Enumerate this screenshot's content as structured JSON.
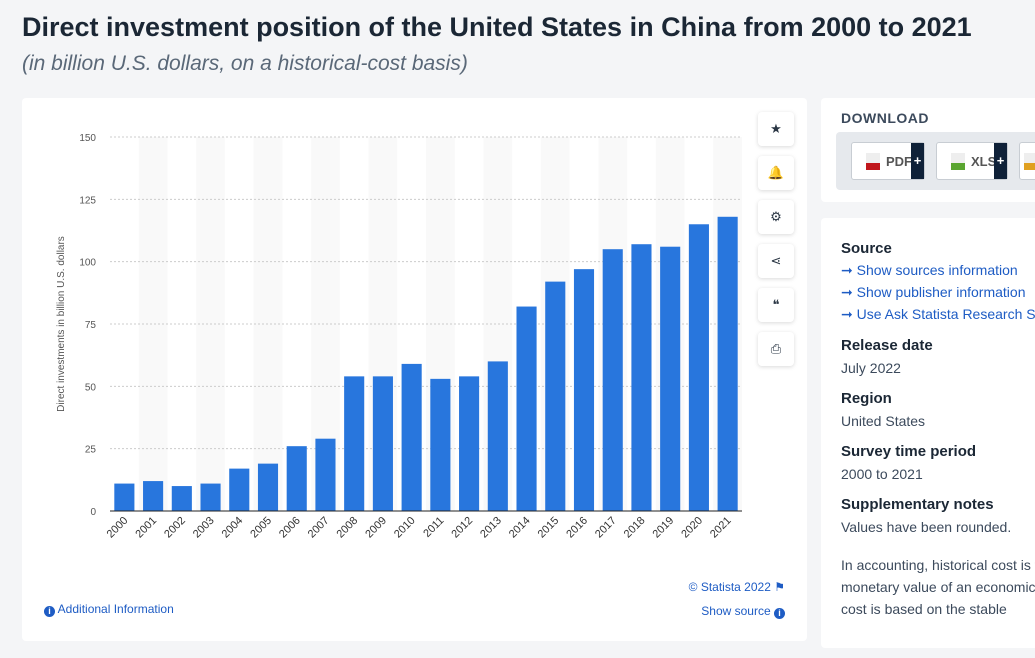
{
  "header": {
    "title": "Direct investment position of the United States in China from 2000 to 2021",
    "subtitle": "(in billion U.S. dollars, on a historical-cost basis)"
  },
  "chart_data": {
    "type": "bar",
    "ylabel": "Direct investments in billion U.S. dollars",
    "ylim": [
      0,
      150
    ],
    "yticks": [
      0,
      25,
      50,
      75,
      100,
      125,
      150
    ],
    "grid": true,
    "categories": [
      "2000",
      "2001",
      "2002",
      "2003",
      "2004",
      "2005",
      "2006",
      "2007",
      "2008",
      "2009",
      "2010",
      "2011",
      "2012",
      "2013",
      "2014",
      "2015",
      "2016",
      "2017",
      "2018",
      "2019",
      "2020",
      "2021"
    ],
    "values": [
      11,
      12,
      10,
      11,
      17,
      19,
      26,
      29,
      54,
      54,
      59,
      53,
      54,
      60,
      82,
      92,
      97,
      105,
      107,
      106,
      115,
      118
    ],
    "color": "#2876dd"
  },
  "chart_footer": {
    "copyright": "© Statista 2022",
    "show_source": "Show source",
    "additional_info": "Additional Information"
  },
  "tools": [
    {
      "icon": "star-icon",
      "glyph": "★"
    },
    {
      "icon": "bell-icon",
      "glyph": "🔔"
    },
    {
      "icon": "gear-icon",
      "glyph": "⚙"
    },
    {
      "icon": "share-icon",
      "glyph": "⋖"
    },
    {
      "icon": "quote-icon",
      "glyph": "❝"
    },
    {
      "icon": "print-icon",
      "glyph": "⎙"
    }
  ],
  "download": {
    "heading": "DOWNLOAD",
    "buttons": [
      {
        "label": "PDF",
        "color": "#c0161b"
      },
      {
        "label": "XLS",
        "color": "#5aa530"
      },
      {
        "label": "",
        "color": "#e0a020"
      }
    ]
  },
  "meta": {
    "source_heading": "Source",
    "source_links": [
      "Show sources information",
      "Show publisher information",
      "Use Ask Statista Research Service"
    ],
    "release_heading": "Release date",
    "release": "July 2022",
    "region_heading": "Region",
    "region": "United States",
    "period_heading": "Survey time period",
    "period": "2000 to 2021",
    "notes_heading": "Supplementary notes",
    "notes": "Values have been rounded.",
    "notes_extra": [
      "In accounting, historical cost is the original",
      "monetary value of an economic item",
      "cost is based on the stable"
    ]
  }
}
